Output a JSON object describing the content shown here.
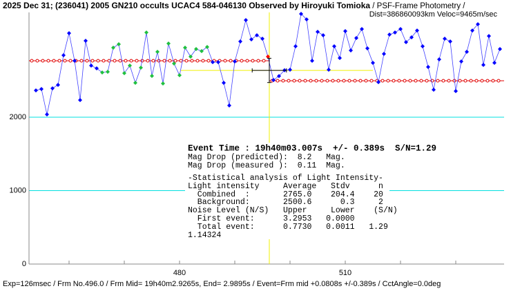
{
  "chart_data": {
    "type": "line",
    "title": "2025 Dec 31; (236041) 2005 GN210 occults UCAC4 584-046130 Observed by Hiroyuki Tomioka",
    "subtitle": " / PSF-Frame Photometry /",
    "subtitle2": "Dist=386860093km Veloc=9465m/sec",
    "footer": "Exp=126msec / Frm No.496.0 / Frm Mid= 19h40m2.9265s, End= 2.9895s / Event=Frm mid +0.0808s +/-0.389s / CctAngle=0.0deg",
    "annotations": [
      "Event Time : 19h40m03.007s  +/- 0.389s  S/N=1.29",
      "Mag Drop (predicted):  8.2   Mag.",
      "Mag Drop (measured ):  0.11  Mag.",
      "-Statistical analysis of Light Intensity-",
      "Light intensity     Average   Stdv      n",
      "  Combined  :       2765.0    204.4    20",
      "  Background:       2500.6      0.3     2",
      "Noise Level (N/S)   Upper     Lower    (S/N)",
      "  First event:      3.2953   0.0000",
      "  Total event:      0.7730   0.0011   1.29",
      "1.14324"
    ],
    "xlim": [
      452.75,
      538.75
    ],
    "xticks": [
      480,
      510
    ],
    "x_minor_ticks": [
      460,
      470,
      490,
      500,
      520,
      530
    ],
    "ylim": [
      0,
      3427
    ],
    "yticks": [
      0,
      1000,
      2000
    ],
    "grid": true,
    "grid_color": "#00e0e0",
    "line_color": "#4040ff",
    "x": [
      454,
      455,
      456,
      457,
      458,
      459,
      460,
      461,
      462,
      463,
      464,
      465,
      466,
      467,
      468,
      469,
      470,
      471,
      472,
      473,
      474,
      475,
      476,
      477,
      478,
      479,
      480,
      481,
      482,
      483,
      484,
      485,
      486,
      487,
      488,
      489,
      490,
      491,
      492,
      493,
      494,
      495,
      496,
      497,
      498,
      499,
      500,
      501,
      502,
      503,
      504,
      505,
      506,
      507,
      508,
      509,
      510,
      511,
      512,
      513,
      514,
      515,
      516,
      517,
      518,
      519,
      520,
      521,
      522,
      523,
      524,
      525,
      526,
      527,
      528,
      529,
      530,
      531,
      532,
      533,
      534,
      535,
      536,
      537,
      538
    ],
    "values": [
      2365,
      2384,
      2037,
      2393,
      2440,
      2844,
      3144,
      2769,
      2234,
      3041,
      2703,
      2665,
      2609,
      2618,
      2947,
      2994,
      2600,
      2703,
      2468,
      2675,
      3153,
      2562,
      2891,
      2459,
      3003,
      2731,
      2571,
      2947,
      2825,
      2928,
      2900,
      2956,
      2750,
      2750,
      2468,
      2159,
      2759,
      3031,
      3322,
      3060,
      3116,
      3069,
      2825,
      2506,
      2560,
      2640,
      2647,
      2966,
      3407,
      3332,
      2769,
      3163,
      3116,
      2647,
      2966,
      2806,
      3172,
      2909,
      3078,
      3200,
      2938,
      2741,
      2478,
      2862,
      3125,
      3153,
      3200,
      3022,
      3088,
      3181,
      2966,
      2684,
      2374,
      2787,
      3069,
      3031,
      2356,
      2759,
      2891,
      3181,
      3266,
      2712,
      3106,
      2741,
      2928
    ],
    "marker_colors": [
      "#0000ff",
      "#0000ff",
      "#0000ff",
      "#0000ff",
      "#0000ff",
      "#0000ff",
      "#0000ff",
      "#0000ff",
      "#0000ff",
      "#0000ff",
      "#0000ff",
      "#0000ff",
      "#20c040",
      "#20c040",
      "#20c040",
      "#20c040",
      "#20c040",
      "#20c040",
      "#20c040",
      "#20c040",
      "#20c040",
      "#20c040",
      "#20c040",
      "#20c040",
      "#20c040",
      "#20c040",
      "#20c040",
      "#20c040",
      "#20c040",
      "#20c040",
      "#20c040",
      "#20c040",
      "#0000ff",
      "#0000ff",
      "#0000ff",
      "#0000ff",
      "#0000ff",
      "#0000ff",
      "#0000ff",
      "#0000ff",
      "#0000ff",
      "#0000ff",
      "#ff0000",
      "#0000ff",
      "#0000ff",
      "#0000ff",
      "#0000ff",
      "#0000ff",
      "#0000ff",
      "#0000ff",
      "#0000ff",
      "#0000ff",
      "#0000ff",
      "#0000ff",
      "#0000ff",
      "#0000ff",
      "#0000ff",
      "#0000ff",
      "#0000ff",
      "#0000ff",
      "#0000ff",
      "#0000ff",
      "#0000ff",
      "#0000ff",
      "#0000ff",
      "#0000ff",
      "#0000ff",
      "#0000ff",
      "#0000ff",
      "#0000ff",
      "#0000ff",
      "#0000ff",
      "#0000ff",
      "#0000ff",
      "#0000ff",
      "#0000ff",
      "#0000ff",
      "#0000ff",
      "#0000ff",
      "#0000ff",
      "#0000ff",
      "#0000ff",
      "#0000ff",
      "#0000ff",
      "#0000ff"
    ],
    "event_x": 496.25,
    "event_x_error": 3.1,
    "event_y": 2637,
    "event_y_error": 165,
    "upper_level": 2769,
    "lower_level": 2496,
    "level_color": "#e00000",
    "yellow_line": {
      "value": 2637,
      "x": [
        480.25,
        515
      ]
    },
    "event_color": "#f0f000"
  }
}
